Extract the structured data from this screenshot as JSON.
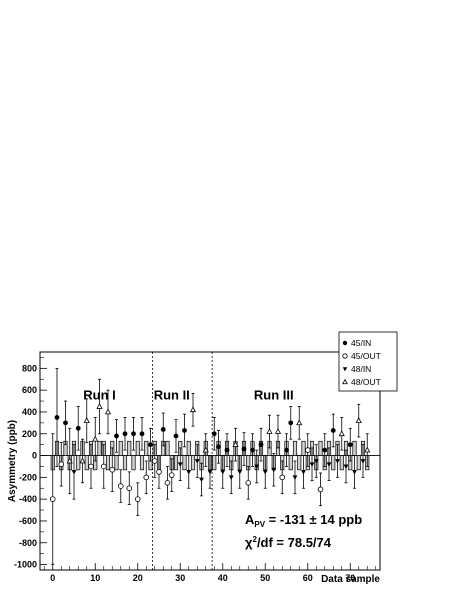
{
  "chart_data": {
    "type": "scatter",
    "xlabel": "Data sample",
    "ylabel": "Asymmetry (ppb)",
    "xlim": [
      -3,
      77
    ],
    "ylim": [
      -1050,
      950
    ],
    "xticks": [
      0,
      10,
      20,
      30,
      40,
      50,
      60,
      70
    ],
    "yticks": [
      -1000,
      -800,
      -600,
      -400,
      -200,
      0,
      200,
      400,
      600,
      800
    ],
    "run_boundaries": [
      23.5,
      37.5
    ],
    "run_labels": [
      {
        "text": "Run I",
        "x": 11,
        "y": 560
      },
      {
        "text": "Run II",
        "x": 28,
        "y": 560
      },
      {
        "text": "Run III",
        "x": 52,
        "y": 560
      }
    ],
    "annotation_apv": {
      "main": "A",
      "sub": "PV",
      "rest": " = -131 ± 14 ppb"
    },
    "annotation_chi2": {
      "main": "χ",
      "sup": "2",
      "rest": "/df = 78.5/74"
    },
    "legend": [
      {
        "name": "45/IN",
        "marker": "filled-circle"
      },
      {
        "name": "45/OUT",
        "marker": "open-circle"
      },
      {
        "name": "48/IN",
        "marker": "filled-triangle-down"
      },
      {
        "name": "48/OUT",
        "marker": "open-triangle-up"
      }
    ],
    "expected_sign_bands": {
      "magnitude": 131,
      "signs": [
        -1,
        1,
        -1,
        1,
        -1,
        1,
        -1,
        1,
        -1,
        1,
        -1,
        1,
        1,
        -1,
        1,
        -1,
        1,
        -1,
        1,
        -1,
        1,
        -1,
        1,
        -1,
        1,
        -1,
        1,
        1,
        -1,
        -1,
        1,
        -1,
        1,
        -1,
        1,
        -1,
        1,
        -1,
        -1,
        1,
        -1,
        1,
        -1,
        1,
        -1,
        1,
        -1,
        1,
        -1,
        1,
        -1,
        1,
        -1,
        1,
        -1,
        1,
        -1,
        1,
        -1,
        1,
        -1,
        1,
        -1,
        1,
        -1,
        1,
        -1,
        1,
        -1,
        1,
        -1,
        1,
        -1,
        1,
        -1
      ]
    },
    "points": [
      {
        "x": 0,
        "y": -400,
        "err": 600,
        "marker": "open-circle"
      },
      {
        "x": 1,
        "y": 350,
        "err": 450,
        "marker": "filled-circle"
      },
      {
        "x": 2,
        "y": -80,
        "err": 200,
        "marker": "open-circle"
      },
      {
        "x": 3,
        "y": 300,
        "err": 200,
        "marker": "filled-circle"
      },
      {
        "x": 4,
        "y": -50,
        "err": 300,
        "marker": "open-triangle-up"
      },
      {
        "x": 5,
        "y": -150,
        "err": 250,
        "marker": "filled-triangle-down"
      },
      {
        "x": 6,
        "y": 250,
        "err": 200,
        "marker": "filled-circle"
      },
      {
        "x": 7,
        "y": -50,
        "err": 200,
        "marker": "open-triangle-up"
      },
      {
        "x": 8,
        "y": 320,
        "err": 200,
        "marker": "open-triangle-up"
      },
      {
        "x": 9,
        "y": -100,
        "err": 200,
        "marker": "open-circle"
      },
      {
        "x": 10,
        "y": 150,
        "err": 200,
        "marker": "open-triangle-up"
      },
      {
        "x": 11,
        "y": 450,
        "err": 250,
        "marker": "open-triangle-up"
      },
      {
        "x": 12,
        "y": -100,
        "err": 200,
        "marker": "open-circle"
      },
      {
        "x": 13,
        "y": 400,
        "err": 200,
        "marker": "open-triangle-up"
      },
      {
        "x": 14,
        "y": -130,
        "err": 200,
        "marker": "open-circle"
      },
      {
        "x": 15,
        "y": 180,
        "err": 150,
        "marker": "filled-circle"
      },
      {
        "x": 16,
        "y": -280,
        "err": 150,
        "marker": "open-circle"
      },
      {
        "x": 17,
        "y": 200,
        "err": 150,
        "marker": "filled-circle"
      },
      {
        "x": 18,
        "y": -300,
        "err": 150,
        "marker": "open-circle"
      },
      {
        "x": 19,
        "y": 200,
        "err": 150,
        "marker": "filled-circle"
      },
      {
        "x": 20,
        "y": -400,
        "err": 150,
        "marker": "open-circle"
      },
      {
        "x": 21,
        "y": 200,
        "err": 150,
        "marker": "filled-circle"
      },
      {
        "x": 22,
        "y": -200,
        "err": 150,
        "marker": "open-circle"
      },
      {
        "x": 23,
        "y": 100,
        "err": 150,
        "marker": "filled-circle"
      },
      {
        "x": 24,
        "y": -50,
        "err": 150,
        "marker": "open-circle"
      },
      {
        "x": 25,
        "y": -150,
        "err": 150,
        "marker": "open-circle"
      },
      {
        "x": 26,
        "y": 240,
        "err": 150,
        "marker": "filled-circle"
      },
      {
        "x": 27,
        "y": -250,
        "err": 150,
        "marker": "open-circle"
      },
      {
        "x": 28,
        "y": -180,
        "err": 150,
        "marker": "open-circle"
      },
      {
        "x": 29,
        "y": 180,
        "err": 150,
        "marker": "filled-circle"
      },
      {
        "x": 30,
        "y": -80,
        "err": 150,
        "marker": "filled-triangle-down"
      },
      {
        "x": 31,
        "y": 230,
        "err": 150,
        "marker": "filled-circle"
      },
      {
        "x": 32,
        "y": -150,
        "err": 150,
        "marker": "filled-triangle-down"
      },
      {
        "x": 33,
        "y": 420,
        "err": 150,
        "marker": "open-triangle-up"
      },
      {
        "x": 34,
        "y": -50,
        "err": 150,
        "marker": "filled-triangle-down"
      },
      {
        "x": 35,
        "y": -220,
        "err": 150,
        "marker": "filled-triangle-down"
      },
      {
        "x": 36,
        "y": 50,
        "err": 150,
        "marker": "open-triangle-up"
      },
      {
        "x": 37,
        "y": -150,
        "err": 150,
        "marker": "filled-triangle-down"
      },
      {
        "x": 38,
        "y": 200,
        "err": 150,
        "marker": "filled-circle"
      },
      {
        "x": 39,
        "y": 80,
        "err": 150,
        "marker": "filled-circle"
      },
      {
        "x": 40,
        "y": -150,
        "err": 150,
        "marker": "filled-triangle-down"
      },
      {
        "x": 41,
        "y": 50,
        "err": 150,
        "marker": "filled-circle"
      },
      {
        "x": 42,
        "y": -200,
        "err": 150,
        "marker": "filled-triangle-down"
      },
      {
        "x": 43,
        "y": 100,
        "err": 150,
        "marker": "open-triangle-up"
      },
      {
        "x": 44,
        "y": -150,
        "err": 150,
        "marker": "filled-triangle-down"
      },
      {
        "x": 45,
        "y": 60,
        "err": 150,
        "marker": "filled-circle"
      },
      {
        "x": 46,
        "y": -250,
        "err": 150,
        "marker": "open-circle"
      },
      {
        "x": 47,
        "y": 50,
        "err": 150,
        "marker": "filled-circle"
      },
      {
        "x": 48,
        "y": -100,
        "err": 150,
        "marker": "filled-triangle-down"
      },
      {
        "x": 49,
        "y": 100,
        "err": 150,
        "marker": "filled-circle"
      },
      {
        "x": 50,
        "y": -150,
        "err": 150,
        "marker": "filled-triangle-down"
      },
      {
        "x": 51,
        "y": 220,
        "err": 150,
        "marker": "open-triangle-up"
      },
      {
        "x": 52,
        "y": -130,
        "err": 150,
        "marker": "filled-triangle-down"
      },
      {
        "x": 53,
        "y": 220,
        "err": 150,
        "marker": "open-triangle-up"
      },
      {
        "x": 54,
        "y": -200,
        "err": 150,
        "marker": "open-circle"
      },
      {
        "x": 55,
        "y": 50,
        "err": 150,
        "marker": "filled-circle"
      },
      {
        "x": 56,
        "y": 300,
        "err": 150,
        "marker": "filled-circle"
      },
      {
        "x": 57,
        "y": -200,
        "err": 150,
        "marker": "filled-triangle-down"
      },
      {
        "x": 58,
        "y": 300,
        "err": 150,
        "marker": "open-triangle-up"
      },
      {
        "x": 59,
        "y": -150,
        "err": 150,
        "marker": "filled-triangle-down"
      },
      {
        "x": 60,
        "y": 50,
        "err": 150,
        "marker": "open-circle"
      },
      {
        "x": 61,
        "y": -80,
        "err": 150,
        "marker": "filled-triangle-down"
      },
      {
        "x": 62,
        "y": -50,
        "err": 150,
        "marker": "filled-triangle-down"
      },
      {
        "x": 63,
        "y": -310,
        "err": 150,
        "marker": "open-circle"
      },
      {
        "x": 64,
        "y": 50,
        "err": 150,
        "marker": "filled-circle"
      },
      {
        "x": 65,
        "y": -80,
        "err": 150,
        "marker": "filled-triangle-down"
      },
      {
        "x": 66,
        "y": 230,
        "err": 150,
        "marker": "filled-circle"
      },
      {
        "x": 67,
        "y": -50,
        "err": 150,
        "marker": "filled-triangle-down"
      },
      {
        "x": 68,
        "y": 200,
        "err": 150,
        "marker": "open-triangle-up"
      },
      {
        "x": 69,
        "y": -100,
        "err": 150,
        "marker": "filled-triangle-down"
      },
      {
        "x": 70,
        "y": 100,
        "err": 150,
        "marker": "filled-circle"
      },
      {
        "x": 71,
        "y": -150,
        "err": 150,
        "marker": "filled-triangle-down"
      },
      {
        "x": 72,
        "y": 320,
        "err": 150,
        "marker": "open-triangle-up"
      },
      {
        "x": 73,
        "y": -50,
        "err": 150,
        "marker": "filled-triangle-down"
      },
      {
        "x": 74,
        "y": 50,
        "err": 150,
        "marker": "open-triangle-up"
      }
    ]
  }
}
